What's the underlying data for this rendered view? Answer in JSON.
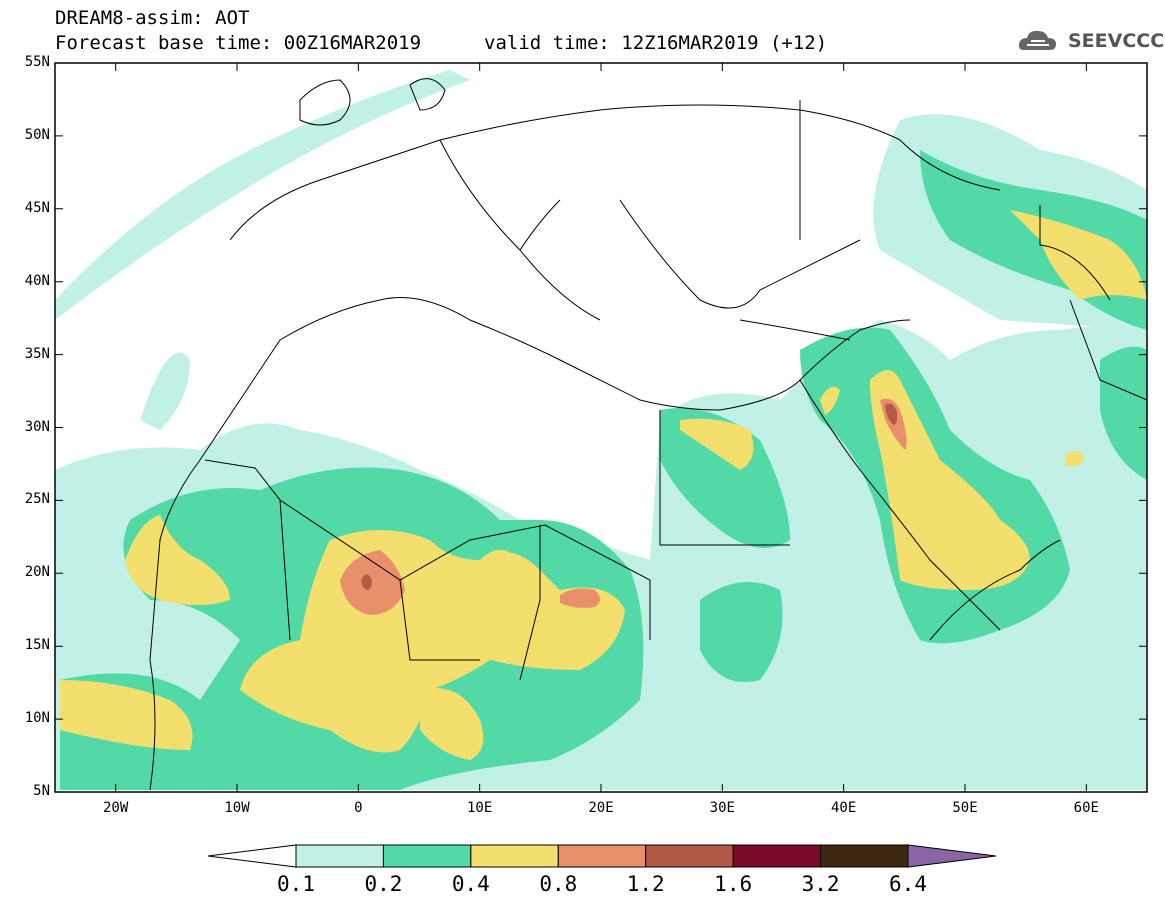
{
  "header": {
    "title_line1": "DREAM8-assim: AOT",
    "title_line2": "Forecast base time: 00Z16MAR2019",
    "valid_time": "valid time: 12Z16MAR2019 (+12)"
  },
  "logo": {
    "text": "SEEVCCC",
    "icon": "cloud-icon"
  },
  "map": {
    "projection": "lat-lon",
    "lon_range": [
      -25,
      65
    ],
    "lat_range": [
      5,
      55
    ],
    "lat_labels": [
      "55N",
      "50N",
      "45N",
      "40N",
      "35N",
      "30N",
      "25N",
      "20N",
      "15N",
      "10N",
      "5N"
    ],
    "lon_labels": [
      "20W",
      "10W",
      "0",
      "10E",
      "20E",
      "30E",
      "40E",
      "50E",
      "60E"
    ]
  },
  "colorbar": {
    "labels": [
      "0.1",
      "0.2",
      "0.4",
      "0.8",
      "1.2",
      "1.6",
      "3.2",
      "6.4"
    ],
    "colors": [
      "#c0f0e6",
      "#52d9a5",
      "#f2df6e",
      "#e8906c",
      "#b25a48",
      "#7a0b28",
      "#3e2812",
      "#8a66a6"
    ]
  }
}
